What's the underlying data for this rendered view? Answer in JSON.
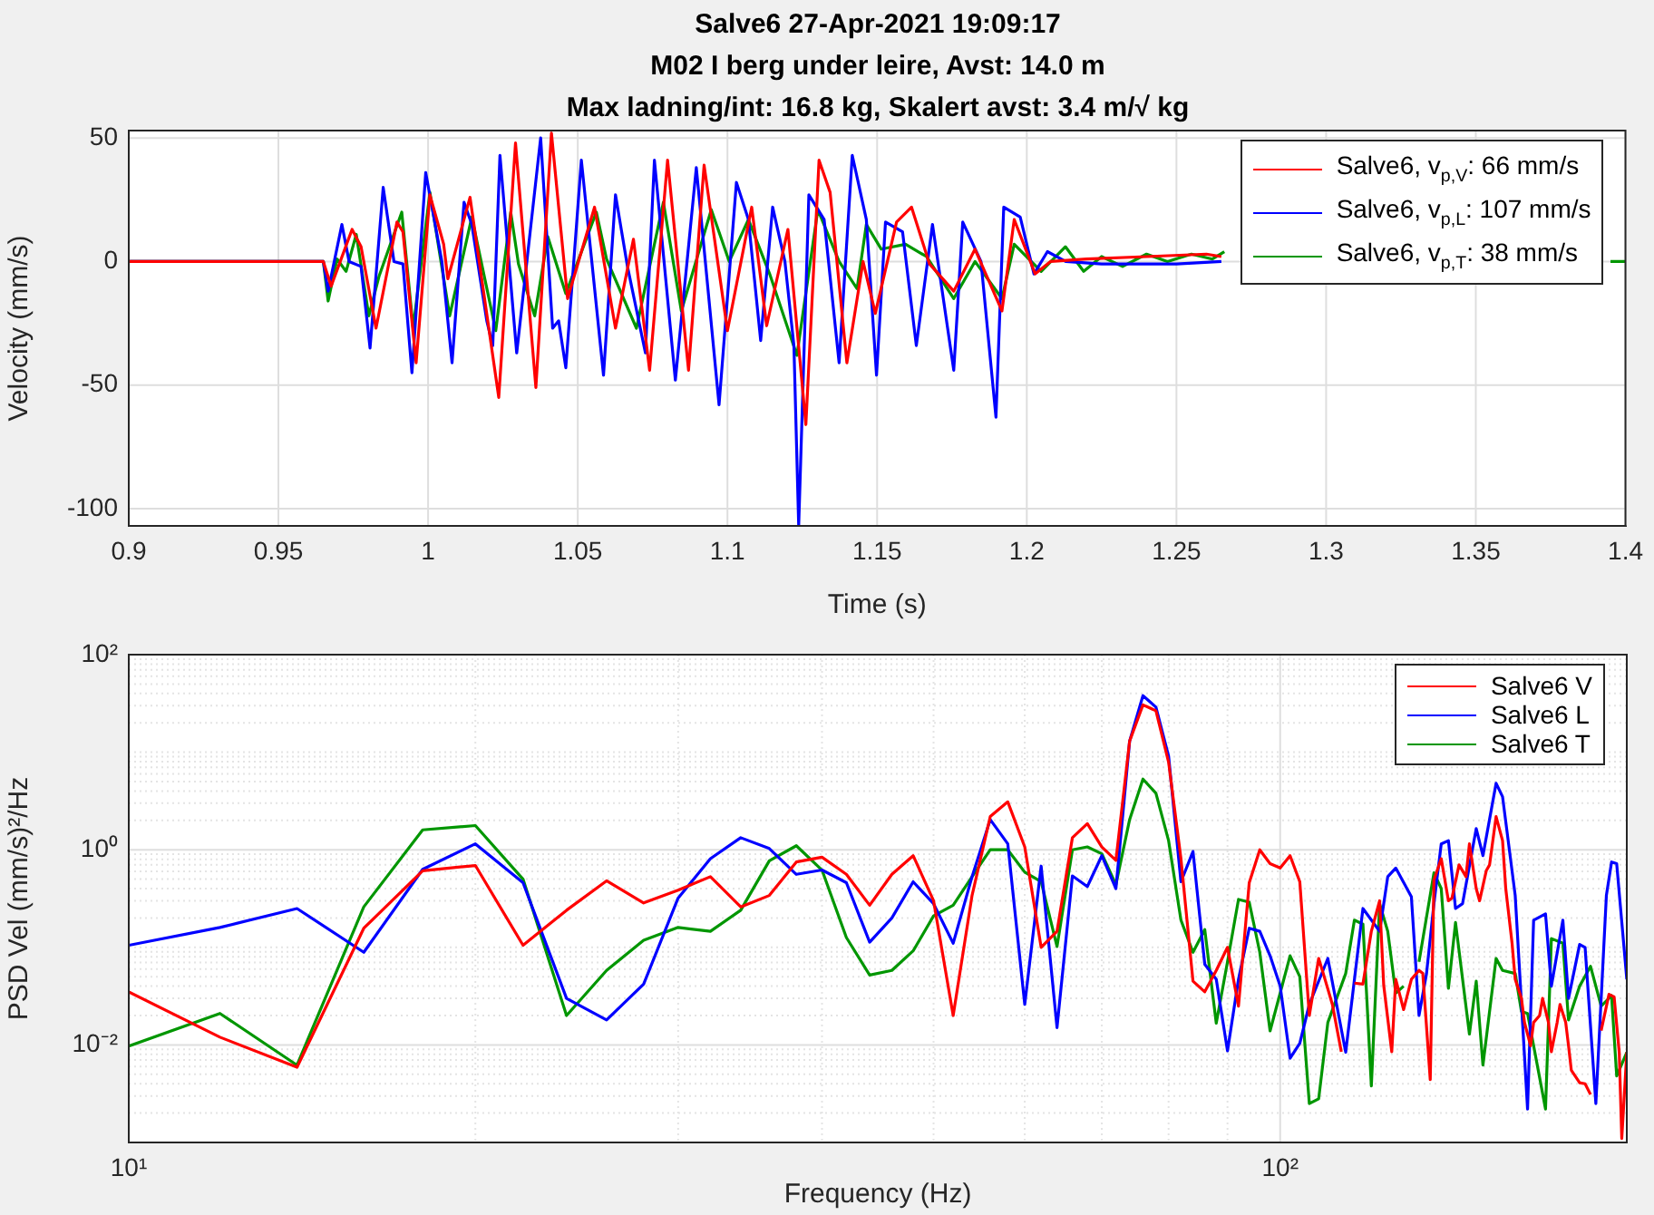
{
  "chart_data": [
    {
      "type": "line",
      "title": "Salve6 27-Apr-2021 19:09:17\nM02 I berg under leire, Avst: 14.0 m\nMax ladning/int: 16.8 kg, Skalert avst: 3.4 m/√ kg",
      "xlabel": "Time (s)",
      "ylabel": "Velocity (mm/s)",
      "xlim": [
        0.9,
        1.4
      ],
      "ylim": [
        -107,
        53
      ],
      "xticks": [
        0.9,
        0.95,
        1,
        1.05,
        1.1,
        1.15,
        1.2,
        1.25,
        1.3,
        1.35,
        1.4
      ],
      "yticks": [
        -100,
        -50,
        0,
        50
      ],
      "grid": true,
      "legend": "top right",
      "series": [
        {
          "name": "Salve6, v$_{p,V}$: 66 mm/s",
          "color": "#ff0000",
          "x": [
            0.9,
            0.965,
            0.9676,
            0.9746,
            0.9776,
            0.9826,
            0.9896,
            0.9916,
            0.996,
            1.0006,
            1.0052,
            1.0066,
            1.014,
            1.0236,
            1.0292,
            1.036,
            1.0412,
            1.0466,
            1.0556,
            1.0626,
            1.0686,
            1.074,
            1.08,
            1.087,
            1.0922,
            1.1,
            1.1081,
            1.1131,
            1.1202,
            1.1262,
            1.1306,
            1.1343,
            1.1399,
            1.1453,
            1.1494,
            1.1565,
            1.1615,
            1.1675,
            1.1756,
            1.1827,
            1.1917,
            1.1958,
            1.2028,
            1.2079,
            1.22,
            1.24,
            1.26,
            1.265
          ],
          "values": [
            0,
            0,
            -10,
            13,
            6,
            -27,
            16,
            12,
            -41,
            27,
            7,
            -7,
            26,
            -55,
            48,
            -51,
            52,
            -15,
            22,
            -27,
            9,
            -44,
            41,
            -44,
            39,
            -28,
            22,
            -26,
            13,
            -66,
            41,
            28,
            -41,
            0,
            -21,
            16,
            22,
            -1,
            -12,
            5,
            -20,
            17,
            -5,
            0,
            1,
            2,
            3,
            2
          ]
        },
        {
          "name": "Salve6, v$_{p,L}$: 107 mm/s",
          "color": "#0000ff",
          "x": [
            0.9,
            0.965,
            0.9666,
            0.9712,
            0.9736,
            0.9776,
            0.9806,
            0.985,
            0.9886,
            0.9916,
            0.9946,
            0.9992,
            1.0046,
            1.008,
            1.012,
            1.0146,
            1.0196,
            1.0216,
            1.024,
            1.0296,
            1.034,
            1.0376,
            1.0416,
            1.0436,
            1.046,
            1.0512,
            1.0586,
            1.0626,
            1.0666,
            1.0726,
            1.0756,
            1.0826,
            1.0896,
            1.0972,
            1.103,
            1.107,
            1.1111,
            1.1151,
            1.1192,
            1.1222,
            1.1238,
            1.1272,
            1.1323,
            1.1373,
            1.1417,
            1.1464,
            1.1498,
            1.1528,
            1.1585,
            1.1631,
            1.1685,
            1.1756,
            1.1786,
            1.1847,
            1.1897,
            1.1923,
            1.1978,
            1.2024,
            1.2069,
            1.213,
            1.225,
            1.25,
            1.265
          ],
          "values": [
            0,
            0,
            -12,
            15,
            0,
            -2,
            -35,
            30,
            0,
            -1,
            -45,
            36,
            0,
            -41,
            24,
            15,
            -24,
            -34,
            43,
            -37,
            11,
            50,
            -27,
            -24,
            -43,
            41,
            -46,
            27,
            -2,
            -37,
            41,
            -48,
            38,
            -58,
            32,
            17,
            -32,
            22,
            0,
            -34,
            -107,
            27,
            17,
            -41,
            43,
            17,
            -46,
            16,
            12,
            -34,
            15,
            -44,
            16,
            0,
            -63,
            22,
            18,
            -5,
            4,
            0,
            -1,
            -1,
            0
          ]
        },
        {
          "name": "Salve6, v$_{p,T}$: 38 mm/s",
          "color": "#009600",
          "x": [
            0.9,
            0.965,
            0.9666,
            0.9696,
            0.9726,
            0.976,
            0.9802,
            0.9836,
            0.9912,
            0.995,
            1.0006,
            1.0072,
            1.0146,
            1.0226,
            1.0276,
            1.0302,
            1.0356,
            1.04,
            1.046,
            1.0562,
            1.0596,
            1.0696,
            1.0786,
            1.0846,
            1.0946,
            1.1006,
            1.107,
            1.1141,
            1.1232,
            1.1302,
            1.1373,
            1.1433,
            1.1464,
            1.1514,
            1.1595,
            1.1665,
            1.1756,
            1.1827,
            1.1917,
            1.1958,
            1.2048,
            1.2129,
            1.219,
            1.225,
            1.232,
            1.24,
            1.247,
            1.255,
            1.262,
            1.266,
            1.275,
            1.395,
            1.4
          ],
          "values": [
            0,
            0,
            -16,
            1,
            -4,
            11,
            -22,
            -6,
            20,
            -27,
            28,
            -22,
            18,
            -28,
            20,
            -1,
            -22,
            10,
            -13,
            20,
            1,
            -27,
            24,
            -20,
            21,
            0,
            17,
            -5,
            -38,
            21,
            0,
            -11,
            15,
            5,
            7,
            2,
            -15,
            0,
            -15,
            7,
            -4,
            6,
            -4,
            2,
            -2,
            3,
            0,
            3,
            1,
            4,
            null,
            0,
            0
          ]
        }
      ]
    },
    {
      "type": "line",
      "xlabel": "Frequency (Hz)",
      "ylabel": "PSD Vel (mm/s)²/Hz",
      "log": "xy",
      "xlim": [
        10,
        200
      ],
      "ylim": [
        0.001,
        100
      ],
      "xticks": [
        {
          "value": 10,
          "label": "10¹"
        },
        {
          "value": 20,
          "label": null
        },
        {
          "value": 30,
          "label": null
        },
        {
          "value": 40,
          "label": null
        },
        {
          "value": 50,
          "label": null
        },
        {
          "value": 60,
          "label": null
        },
        {
          "value": 70,
          "label": null
        },
        {
          "value": 80,
          "label": null
        },
        {
          "value": 90,
          "label": null
        },
        {
          "value": 100,
          "label": "10²"
        },
        {
          "value": 200,
          "label": null
        }
      ],
      "yticks": [
        {
          "value": 0.002,
          "label": null
        },
        {
          "value": 0.003,
          "label": null
        },
        {
          "value": 0.004,
          "label": null
        },
        {
          "value": 0.005,
          "label": null
        },
        {
          "value": 0.006,
          "label": null
        },
        {
          "value": 0.007,
          "label": null
        },
        {
          "value": 0.008,
          "label": null
        },
        {
          "value": 0.009,
          "label": null
        },
        {
          "value": 0.01,
          "label": "10⁻²"
        },
        {
          "value": 0.02,
          "label": null
        },
        {
          "value": 0.03,
          "label": null
        },
        {
          "value": 0.04,
          "label": null
        },
        {
          "value": 0.05,
          "label": null
        },
        {
          "value": 0.06,
          "label": null
        },
        {
          "value": 0.07,
          "label": null
        },
        {
          "value": 0.08,
          "label": null
        },
        {
          "value": 0.09,
          "label": null
        },
        {
          "value": 0.1,
          "label": null
        },
        {
          "value": 0.2,
          "label": null
        },
        {
          "value": 0.3,
          "label": null
        },
        {
          "value": 0.4,
          "label": null
        },
        {
          "value": 0.5,
          "label": null
        },
        {
          "value": 0.6,
          "label": null
        },
        {
          "value": 0.7,
          "label": null
        },
        {
          "value": 0.8,
          "label": null
        },
        {
          "value": 0.9,
          "label": null
        },
        {
          "value": 1,
          "label": "10⁰"
        },
        {
          "value": 2,
          "label": null
        },
        {
          "value": 3,
          "label": null
        },
        {
          "value": 4,
          "label": null
        },
        {
          "value": 5,
          "label": null
        },
        {
          "value": 6,
          "label": null
        },
        {
          "value": 7,
          "label": null
        },
        {
          "value": 8,
          "label": null
        },
        {
          "value": 9,
          "label": null
        },
        {
          "value": 10,
          "label": null
        },
        {
          "value": 20,
          "label": null
        },
        {
          "value": 30,
          "label": null
        },
        {
          "value": 40,
          "label": null
        },
        {
          "value": 50,
          "label": null
        },
        {
          "value": 60,
          "label": null
        },
        {
          "value": 70,
          "label": null
        },
        {
          "value": 80,
          "label": null
        },
        {
          "value": 90,
          "label": null
        },
        {
          "value": 100,
          "label": "10²"
        }
      ],
      "grid": true,
      "legend": "top right",
      "series": [
        {
          "name": "Salve6 V",
          "color": "#ff0000",
          "x": [
            10,
            12,
            14,
            16,
            18,
            20,
            22,
            24,
            26,
            28,
            30,
            32,
            34,
            36,
            38,
            40,
            42,
            44,
            46,
            48,
            50,
            52,
            54,
            56,
            58,
            60,
            62,
            64,
            66,
            68,
            70,
            72,
            74,
            76,
            78,
            80,
            82,
            84,
            86,
            88,
            90,
            92,
            94,
            96,
            98,
            100,
            102,
            104,
            106,
            108,
            109,
            111,
            113,
            115,
            116,
            118,
            120,
            122,
            123,
            125,
            126,
            128,
            130,
            132,
            133,
            135,
            136,
            138,
            140,
            141,
            143,
            145,
            146,
            148,
            149,
            151,
            152,
            154,
            156,
            157,
            159,
            160,
            162,
            163,
            165,
            166,
            168,
            169,
            171,
            172,
            174,
            175,
            177,
            178,
            179,
            182,
            184,
            186,
            187,
            190,
            193,
            195,
            197,
            198,
            200
          ],
          "values": [
            0.035,
            0.012,
            0.0059,
            0.157,
            0.61,
            0.69,
            0.105,
            0.24,
            0.48,
            0.285,
            0.385,
            0.53,
            0.26,
            0.34,
            0.75,
            0.84,
            0.56,
            0.27,
            0.56,
            0.87,
            0.3,
            0.02,
            0.34,
            2.19,
            3.1,
            1.07,
            0.1,
            0.146,
            1.33,
            1.85,
            1.07,
            0.78,
            13,
            30.6,
            26.6,
            7.9,
            0.81,
            0.045,
            0.035,
            0.058,
            0.1,
            0.025,
            0.46,
            1.0,
            0.72,
            0.65,
            0.87,
            0.47,
            0.02,
            0.077,
            0.054,
            0.026,
            0.0085,
            null,
            0.043,
            0.042,
            0.146,
            0.3,
            0.041,
            0.0085,
            0.047,
            0.023,
            0.047,
            0.058,
            0.054,
            0.0044,
            0.49,
            0.81,
            0.3,
            0.32,
            0.7,
            0.53,
            1.15,
            0.4,
            0.3,
            0.61,
            0.7,
            2.19,
            1.24,
            0.4,
            0.11,
            0.047,
            0.03,
            0.017,
            0.0098,
            0.017,
            0.02,
            0.03,
            0.017,
            0.0085,
            0.017,
            0.026,
            0.017,
            0.0098,
            0.0055,
            0.0041,
            0.004,
            0.0031,
            null,
            0.014,
            0.033,
            0.031,
            0.0084,
            0.0011,
            0.0084
          ]
        },
        {
          "name": "Salve6 L",
          "color": "#0000ff",
          "x": [
            10,
            12,
            14,
            16,
            18,
            20,
            22,
            24,
            26,
            28,
            30,
            32,
            34,
            36,
            38,
            40,
            42,
            44,
            46,
            48,
            50,
            52,
            54,
            56,
            58,
            60,
            62,
            64,
            66,
            68,
            70,
            72,
            74,
            76,
            78,
            80,
            82,
            84,
            86,
            88,
            90,
            92,
            94,
            96,
            98,
            100,
            102,
            104,
            106,
            110,
            114,
            118,
            122,
            124,
            126,
            130,
            132,
            134,
            136,
            138,
            140,
            142,
            144,
            148,
            150,
            154,
            156,
            160,
            164,
            166,
            170,
            172,
            176,
            178,
            182,
            184,
            188,
            192,
            194,
            196,
            200
          ],
          "values": [
            0.105,
            0.16,
            0.25,
            0.089,
            0.63,
            1.15,
            0.46,
            0.03,
            0.018,
            0.042,
            0.32,
            0.81,
            1.33,
            1.03,
            0.56,
            0.62,
            0.46,
            0.113,
            0.2,
            0.47,
            0.28,
            0.11,
            0.53,
            2.04,
            1.15,
            0.026,
            0.68,
            0.015,
            0.54,
            0.42,
            0.87,
            0.4,
            13,
            38,
            29,
            9.1,
            0.47,
            0.96,
            0.067,
            0.047,
            0.0087,
            0.047,
            0.157,
            0.146,
            0.082,
            0.04,
            0.0073,
            0.0104,
            0.026,
            0.077,
            0.0084,
            0.25,
            0.146,
            0.53,
            0.65,
            0.33,
            0.02,
            0.054,
            0.28,
            1.15,
            1.24,
            0.25,
            0.28,
            1.65,
            0.87,
            4.8,
            3.5,
            0.34,
            0.0022,
            0.19,
            0.22,
            0.04,
            0.19,
            0.03,
            0.107,
            0.1,
            0.0025,
            0.34,
            0.75,
            0.72,
            0.047
          ]
        },
        {
          "name": "Salve6 T",
          "color": "#009600",
          "x": [
            10,
            12,
            14,
            16,
            18,
            20,
            22,
            24,
            26,
            28,
            30,
            32,
            34,
            36,
            38,
            40,
            42,
            44,
            46,
            48,
            50,
            52,
            54,
            56,
            58,
            60,
            62,
            64,
            66,
            68,
            70,
            72,
            74,
            76,
            78,
            80,
            82,
            84,
            86,
            88,
            90,
            92,
            94,
            96,
            98,
            102,
            104,
            106,
            108,
            110,
            114,
            116,
            118,
            120,
            122,
            124,
            126,
            128,
            130,
            132,
            136,
            138,
            140,
            142,
            146,
            148,
            150,
            154,
            156,
            160,
            162,
            164,
            170,
            172,
            176,
            178,
            182,
            186,
            190,
            194,
            196,
            200
          ],
          "values": [
            0.0097,
            0.021,
            0.0062,
            0.26,
            1.6,
            1.77,
            0.5,
            0.02,
            0.058,
            0.118,
            0.16,
            0.146,
            0.24,
            0.77,
            1.1,
            0.62,
            0.126,
            0.052,
            0.058,
            0.092,
            0.21,
            0.27,
            0.53,
            1.0,
            1.0,
            0.59,
            0.47,
            0.102,
            1.0,
            1.07,
            0.91,
            0.44,
            2.04,
            5.3,
            3.8,
            1.24,
            0.19,
            0.089,
            0.152,
            0.0167,
            0.071,
            0.31,
            0.29,
            0.089,
            0.0139,
            0.082,
            0.05,
            0.0025,
            0.0028,
            0.017,
            0.054,
            0.19,
            0.173,
            0.0038,
            0.28,
            0.146,
            0.034,
            0.04,
            null,
            0.071,
            0.58,
            0.4,
            0.038,
            0.18,
            0.0129,
            0.045,
            0.0062,
            0.077,
            0.058,
            0.054,
            0.022,
            0.021,
            0.0022,
            0.123,
            0.11,
            0.018,
            0.04,
            0.064,
            0.025,
            0.032,
            0.0048,
            0.0084
          ]
        }
      ]
    }
  ]
}
